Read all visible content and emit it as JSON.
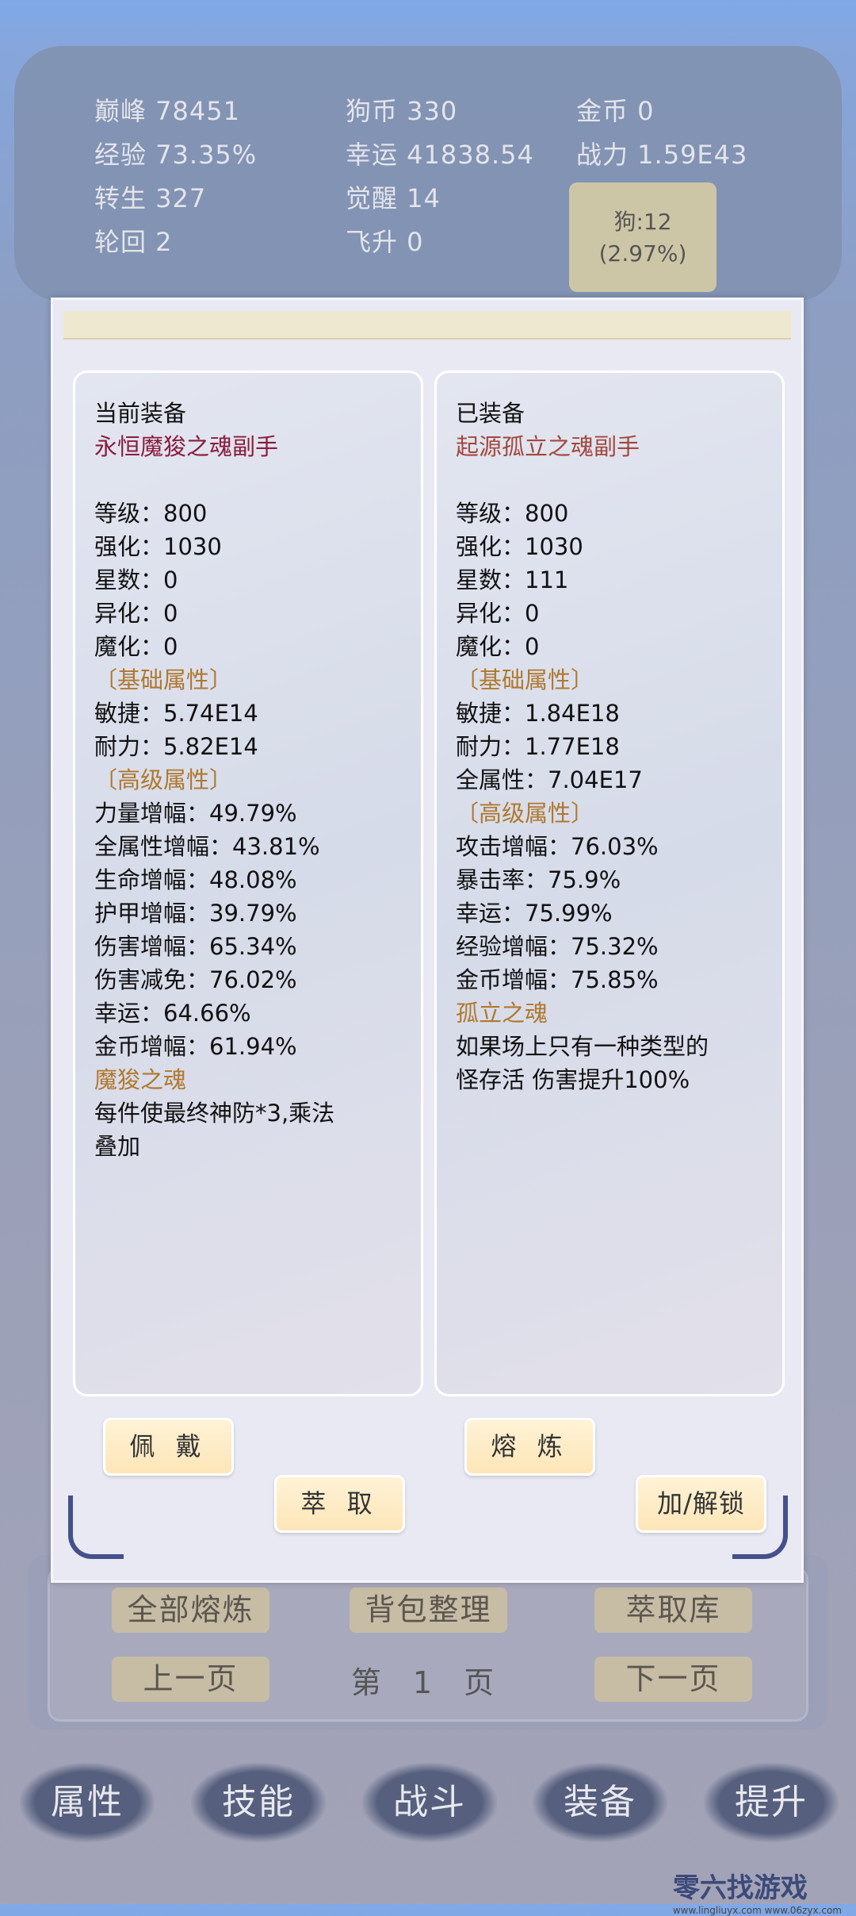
{
  "stats": {
    "peak": "巅峰 78451",
    "dogcoin": "狗币 330",
    "gold": "金币 0",
    "exp": "经验 73.35%",
    "luck": "幸运 41838.54",
    "power": "战力 1.59E43",
    "rebirth": "转生 327",
    "awaken": "觉醒 14",
    "reincarnation": "轮回 2",
    "ascend": "飞升 0"
  },
  "dog": {
    "line1": "狗:12",
    "line2": "(2.97%)"
  },
  "current": {
    "title": "当前装备",
    "name": "永恒魔狻之魂副手",
    "lines": [
      "等级：800",
      "强化：1030",
      "星数：0",
      "异化：0",
      "魔化：0"
    ],
    "base_header": "〔基础属性〕",
    "base": [
      "敏捷：5.74E14",
      "耐力：5.82E14"
    ],
    "adv_header": "〔高级属性〕",
    "adv": [
      "力量增幅：49.79%",
      "全属性增幅：43.81%",
      "生命增幅：48.08%",
      "护甲增幅：39.79%",
      "伤害增幅：65.34%",
      "伤害减免：76.02%",
      "幸运：64.66%",
      "金币增幅：61.94%"
    ],
    "special_header": "魔狻之魂",
    "special": [
      "每件使最终神防*3,乘法",
      "叠加"
    ]
  },
  "equipped": {
    "title": "已装备",
    "name": "起源孤立之魂副手",
    "lines": [
      "等级：800",
      "强化：1030",
      "星数：111",
      "异化：0",
      "魔化：0"
    ],
    "base_header": "〔基础属性〕",
    "base": [
      "敏捷：1.84E18",
      "耐力：1.77E18",
      "全属性：7.04E17"
    ],
    "adv_header": "〔高级属性〕",
    "adv": [
      "攻击增幅：76.03%",
      "暴击率：75.9%",
      "幸运：75.99%",
      "经验增幅：75.32%",
      "金币增幅：75.85%"
    ],
    "special_header": "孤立之魂",
    "special": [
      "如果场上只有一种类型的",
      "怪存活 伤害提升100%"
    ]
  },
  "buttons": {
    "wear": "佩 戴",
    "extract": "萃 取",
    "smelt": "熔 炼",
    "lock": "加/解锁"
  },
  "bag": {
    "smelt_all": "全部熔炼",
    "sort": "背包整理",
    "extract_lib": "萃取库",
    "prev": "上一页",
    "page": "第 1 页",
    "next": "下一页"
  },
  "nav": [
    "属性",
    "技能",
    "战斗",
    "装备",
    "提升"
  ],
  "watermark": {
    "name": "零六找游戏",
    "url": "www.lingliuyx.com  www.06zyx.com"
  }
}
